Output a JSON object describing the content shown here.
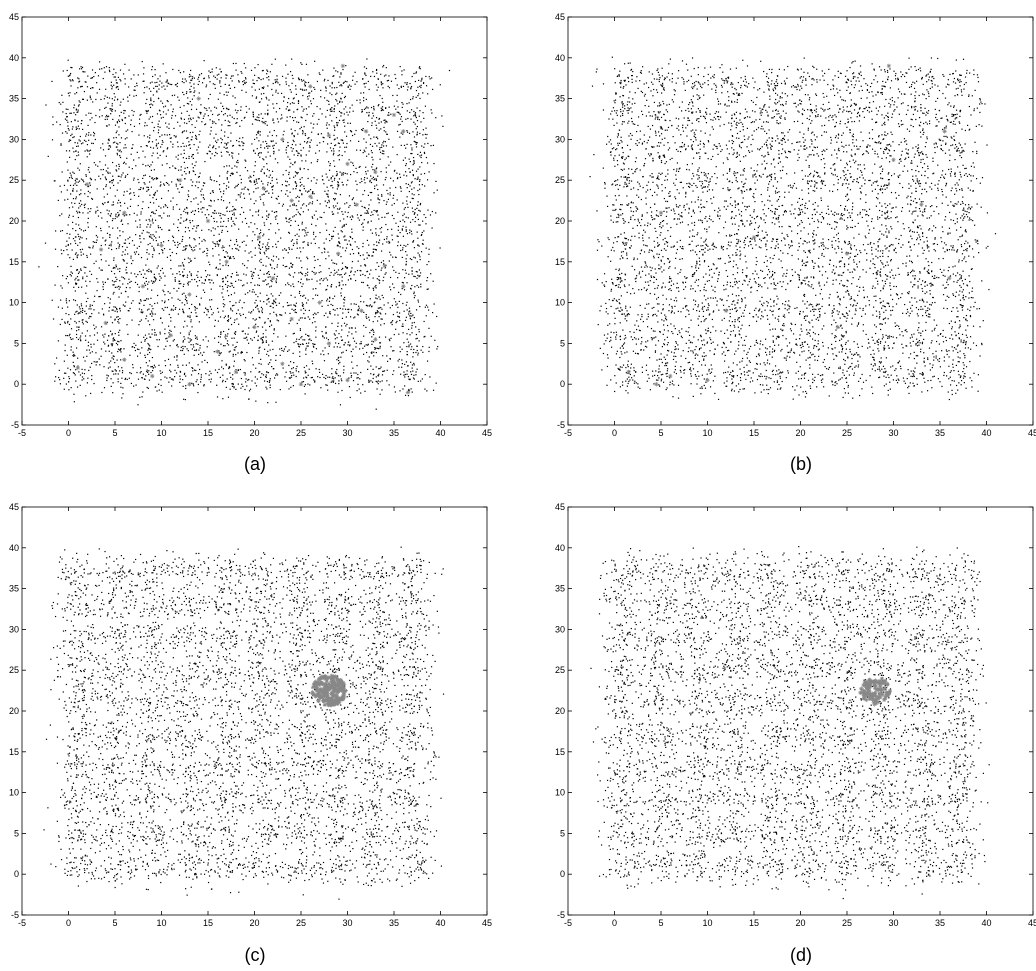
{
  "figure": {
    "panel_labels": [
      "(a)",
      "(b)",
      "(c)",
      "(d)"
    ]
  },
  "chart_data": [
    {
      "type": "scatter",
      "panel": "(a)",
      "title": "",
      "xlabel": "",
      "ylabel": "",
      "xlim": [
        -5,
        45
      ],
      "ylim": [
        -5,
        45
      ],
      "xticks": [
        -5,
        0,
        5,
        10,
        15,
        20,
        25,
        30,
        35,
        40,
        45
      ],
      "yticks": [
        -5,
        0,
        5,
        10,
        15,
        20,
        25,
        30,
        35,
        40,
        45
      ],
      "grid": false,
      "legend": "none",
      "series": [
        {
          "marker": "dot",
          "color": "#000000",
          "distribution": "gaussian-clusters",
          "cluster_centers_x": [
            1,
            5,
            9,
            13,
            17,
            21,
            25,
            29,
            33,
            37
          ],
          "cluster_centers_y": [
            1,
            5,
            9,
            13,
            17,
            21,
            25,
            29,
            33,
            37
          ],
          "cluster_spread": 1.2,
          "points_per_cluster": 55
        },
        {
          "marker": "asterisk",
          "color": "#888888",
          "points": [
            [
              29.5,
              39
            ],
            [
              26,
              36.5
            ],
            [
              14,
              35
            ],
            [
              35,
              33
            ],
            [
              32,
              31
            ],
            [
              36,
              31
            ],
            [
              28,
              30.5
            ],
            [
              23,
              30
            ],
            [
              30,
              27
            ],
            [
              33,
              26
            ],
            [
              12,
              25
            ],
            [
              2,
              24.5
            ],
            [
              21,
              24
            ],
            [
              26,
              23
            ],
            [
              24,
              22.5
            ],
            [
              31,
              22
            ],
            [
              6,
              21
            ],
            [
              15,
              20
            ],
            [
              20.5,
              18
            ],
            [
              10,
              17
            ],
            [
              3.5,
              16.5
            ],
            [
              29,
              16
            ],
            [
              17,
              15
            ],
            [
              34,
              14.5
            ],
            [
              22,
              13
            ],
            [
              8,
              12
            ],
            [
              36,
              12
            ],
            [
              13,
              11
            ],
            [
              27,
              10
            ],
            [
              31.5,
              9
            ],
            [
              24,
              8
            ],
            [
              4,
              7.5
            ],
            [
              20,
              7
            ],
            [
              11,
              6
            ],
            [
              33,
              5.5
            ],
            [
              28,
              5
            ],
            [
              16,
              4
            ],
            [
              6,
              3
            ],
            [
              23,
              2.5
            ],
            [
              1,
              2
            ],
            [
              18,
              1.5
            ],
            [
              9,
              1
            ],
            [
              30,
              0.5
            ],
            [
              36.5,
              -1
            ],
            [
              13,
              0
            ],
            [
              25,
              0
            ]
          ]
        }
      ]
    },
    {
      "type": "scatter",
      "panel": "(b)",
      "title": "",
      "xlabel": "",
      "ylabel": "",
      "xlim": [
        -5,
        45
      ],
      "ylim": [
        -5,
        45
      ],
      "xticks": [
        -5,
        0,
        5,
        10,
        15,
        20,
        25,
        30,
        35,
        40,
        45
      ],
      "yticks": [
        -5,
        0,
        5,
        10,
        15,
        20,
        25,
        30,
        35,
        40,
        45
      ],
      "grid": false,
      "legend": "none",
      "series": [
        {
          "marker": "dot",
          "color": "#000000",
          "distribution": "gaussian-clusters",
          "cluster_centers_x": [
            1,
            5,
            9,
            13,
            17,
            21,
            25,
            29,
            33,
            37
          ],
          "cluster_centers_y": [
            1,
            5,
            9,
            13,
            17,
            21,
            25,
            29,
            33,
            37
          ],
          "cluster_spread": 1.2,
          "points_per_cluster": 55
        },
        {
          "marker": "asterisk",
          "color": "#888888",
          "points": [
            [
              29.5,
              39
            ],
            [
              35.5,
              31
            ],
            [
              30,
              27.5
            ],
            [
              33,
              22
            ],
            [
              5,
              21
            ],
            [
              15,
              18
            ],
            [
              25,
              16
            ],
            [
              36,
              13
            ],
            [
              12,
              9
            ],
            [
              24,
              7
            ],
            [
              6,
              1
            ],
            [
              10,
              0.5
            ],
            [
              1.5,
              1.5
            ],
            [
              4.5,
              0
            ]
          ]
        }
      ]
    },
    {
      "type": "scatter",
      "panel": "(c)",
      "title": "",
      "xlabel": "",
      "ylabel": "",
      "xlim": [
        -5,
        45
      ],
      "ylim": [
        -5,
        45
      ],
      "xticks": [
        -5,
        0,
        5,
        10,
        15,
        20,
        25,
        30,
        35,
        40,
        45
      ],
      "yticks": [
        -5,
        0,
        5,
        10,
        15,
        20,
        25,
        30,
        35,
        40,
        45
      ],
      "grid": false,
      "legend": "none",
      "series": [
        {
          "marker": "dot",
          "color": "#000000",
          "distribution": "gaussian-clusters",
          "cluster_centers_x": [
            1,
            5,
            9,
            13,
            17,
            21,
            25,
            29,
            33,
            37
          ],
          "cluster_centers_y": [
            1,
            5,
            9,
            13,
            17,
            21,
            25,
            29,
            33,
            37
          ],
          "cluster_spread": 1.2,
          "points_per_cluster": 55
        },
        {
          "marker": "asterisk",
          "color": "#888888",
          "distribution": "disk",
          "center": [
            28,
            22.5
          ],
          "radius": 1.8,
          "count": 220
        }
      ]
    },
    {
      "type": "scatter",
      "panel": "(d)",
      "title": "",
      "xlabel": "",
      "ylabel": "",
      "xlim": [
        -5,
        45
      ],
      "ylim": [
        -5,
        45
      ],
      "xticks": [
        -5,
        0,
        5,
        10,
        15,
        20,
        25,
        30,
        35,
        40,
        45
      ],
      "yticks": [
        -5,
        0,
        5,
        10,
        15,
        20,
        25,
        30,
        35,
        40,
        45
      ],
      "grid": false,
      "legend": "none",
      "series": [
        {
          "marker": "dot",
          "color": "#000000",
          "distribution": "gaussian-clusters",
          "cluster_centers_x": [
            1,
            5,
            9,
            13,
            17,
            21,
            25,
            29,
            33,
            37
          ],
          "cluster_centers_y": [
            1,
            5,
            9,
            13,
            17,
            21,
            25,
            29,
            33,
            37
          ],
          "cluster_spread": 1.2,
          "points_per_cluster": 55
        },
        {
          "marker": "asterisk",
          "color": "#888888",
          "distribution": "disk",
          "center": [
            28,
            22.5
          ],
          "radius": 1.6,
          "count": 110
        }
      ]
    }
  ]
}
